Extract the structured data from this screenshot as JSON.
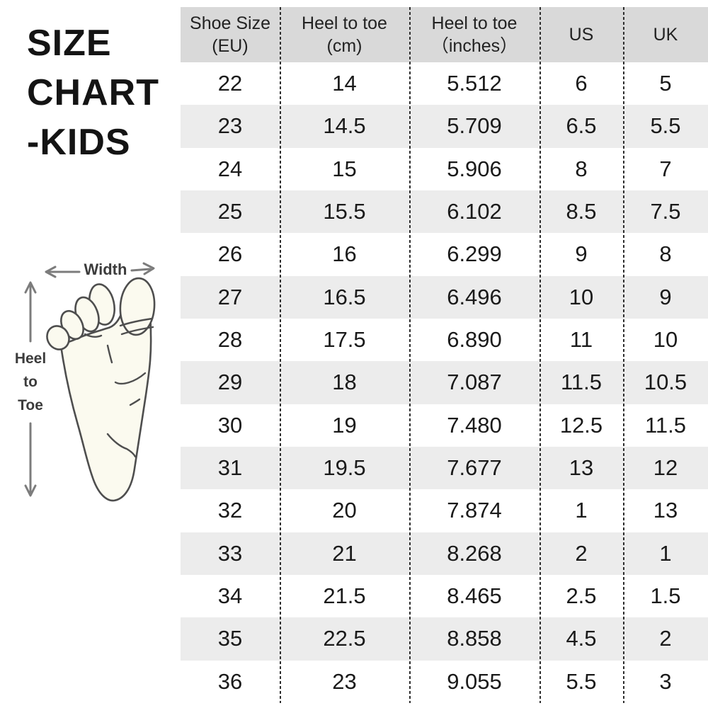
{
  "title": {
    "lines": [
      "SIZE",
      "CHART",
      "-KIDS"
    ]
  },
  "diagram": {
    "width_label": "Width",
    "heel_lines": [
      "Heel",
      "to",
      "Toe"
    ],
    "foot_icon": "foot-sole-outline"
  },
  "table": {
    "columns": [
      "Shoe Size\n(EU)",
      "Heel to toe\n(cm)",
      "Heel to toe\n（inches）",
      "US",
      "UK"
    ],
    "rows": [
      [
        "22",
        "14",
        "5.512",
        "6",
        "5"
      ],
      [
        "23",
        "14.5",
        "5.709",
        "6.5",
        "5.5"
      ],
      [
        "24",
        "15",
        "5.906",
        "8",
        "7"
      ],
      [
        "25",
        "15.5",
        "6.102",
        "8.5",
        "7.5"
      ],
      [
        "26",
        "16",
        "6.299",
        "9",
        "8"
      ],
      [
        "27",
        "16.5",
        "6.496",
        "10",
        "9"
      ],
      [
        "28",
        "17.5",
        "6.890",
        "11",
        "10"
      ],
      [
        "29",
        "18",
        "7.087",
        "11.5",
        "10.5"
      ],
      [
        "30",
        "19",
        "7.480",
        "12.5",
        "11.5"
      ],
      [
        "31",
        "19.5",
        "7.677",
        "13",
        "12"
      ],
      [
        "32",
        "20",
        "7.874",
        "1",
        "13"
      ],
      [
        "33",
        "21",
        "8.268",
        "2",
        "1"
      ],
      [
        "34",
        "21.5",
        "8.465",
        "2.5",
        "1.5"
      ],
      [
        "35",
        "22.5",
        "8.858",
        "4.5",
        "2"
      ],
      [
        "36",
        "23",
        "9.055",
        "5.5",
        "3"
      ]
    ]
  },
  "colors": {
    "header_bg": "#d9d9d9",
    "stripe_bg": "#ececec",
    "line": "#2e2e2e",
    "arrow": "#7c7c7c",
    "foot_fill": "#fbfaef",
    "foot_outline": "#4e4e4e",
    "text": "#1a1a1a"
  },
  "chart_data": {
    "type": "table",
    "title": "SIZE CHART -KIDS",
    "columns": [
      "Shoe Size (EU)",
      "Heel to toe (cm)",
      "Heel to toe (inches)",
      "US",
      "UK"
    ],
    "rows": [
      [
        "22",
        "14",
        "5.512",
        "6",
        "5"
      ],
      [
        "23",
        "14.5",
        "5.709",
        "6.5",
        "5.5"
      ],
      [
        "24",
        "15",
        "5.906",
        "8",
        "7"
      ],
      [
        "25",
        "15.5",
        "6.102",
        "8.5",
        "7.5"
      ],
      [
        "26",
        "16",
        "6.299",
        "9",
        "8"
      ],
      [
        "27",
        "16.5",
        "6.496",
        "10",
        "9"
      ],
      [
        "28",
        "17.5",
        "6.890",
        "11",
        "10"
      ],
      [
        "29",
        "18",
        "7.087",
        "11.5",
        "10.5"
      ],
      [
        "30",
        "19",
        "7.480",
        "12.5",
        "11.5"
      ],
      [
        "31",
        "19.5",
        "7.677",
        "13",
        "12"
      ],
      [
        "32",
        "20",
        "7.874",
        "1",
        "13"
      ],
      [
        "33",
        "21",
        "8.268",
        "2",
        "1"
      ],
      [
        "34",
        "21.5",
        "8.465",
        "2.5",
        "1.5"
      ],
      [
        "35",
        "22.5",
        "8.858",
        "4.5",
        "2"
      ],
      [
        "36",
        "23",
        "9.055",
        "5.5",
        "3"
      ]
    ],
    "annotations": [
      "Width",
      "Heel to Toe"
    ],
    "layout": "header row gray, alternating light-gray striped rows, dashed vertical column separators"
  }
}
